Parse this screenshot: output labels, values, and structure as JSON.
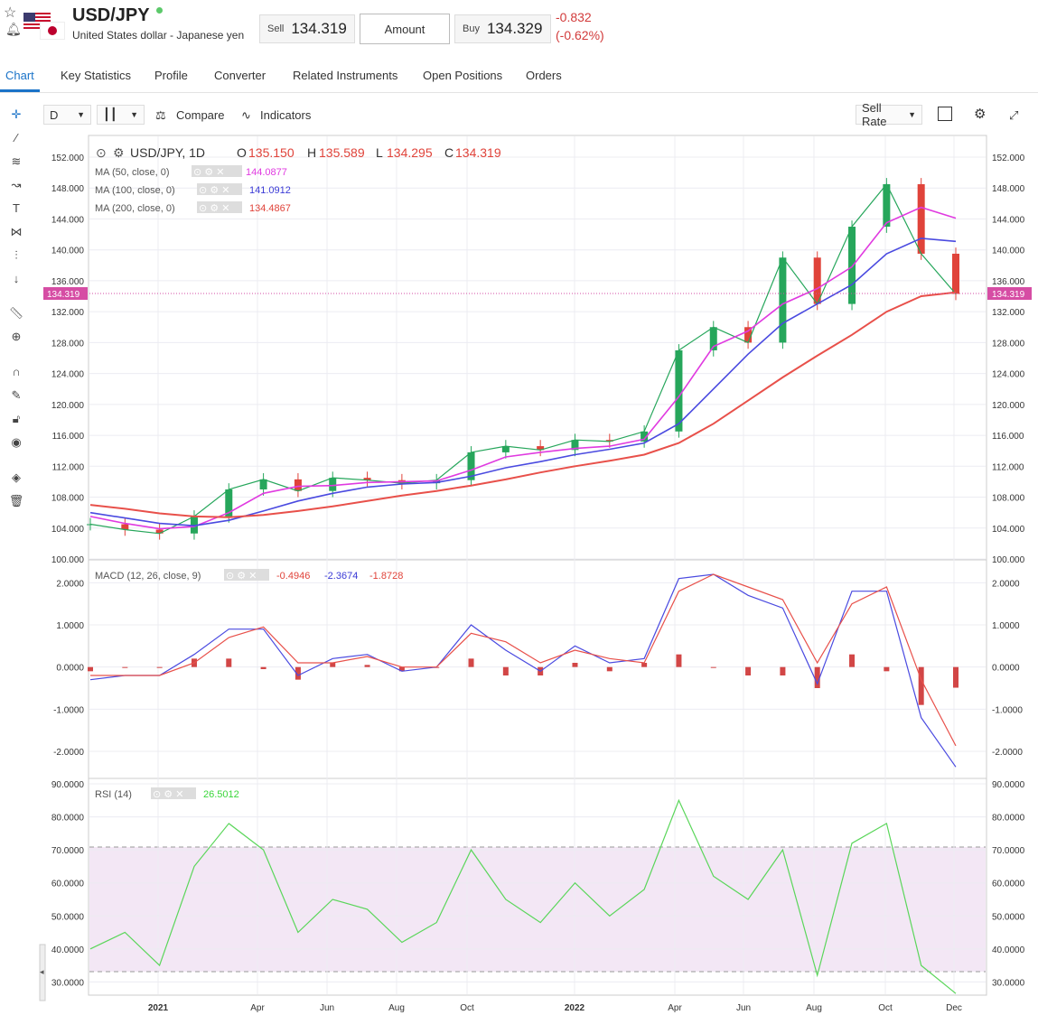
{
  "header": {
    "symbol": "USD/JPY",
    "description": "United States dollar - Japanese yen",
    "sell_label": "Sell",
    "sell_price": "134.319",
    "amount_label": "Amount",
    "buy_label": "Buy",
    "buy_price": "134.329",
    "change": "-0.832",
    "change_pct": "(-0.62%)",
    "colors": {
      "negative": "#d23b3b",
      "live": "#5cc96a"
    }
  },
  "tabs": [
    {
      "label": "Chart",
      "active": true
    },
    {
      "label": "Key Statistics"
    },
    {
      "label": "Profile"
    },
    {
      "label": "Converter"
    },
    {
      "label": "Related Instruments"
    },
    {
      "label": "Open Positions"
    },
    {
      "label": "Orders"
    }
  ],
  "toolbar": {
    "interval": "D",
    "compare": "Compare",
    "indicators": "Indicators",
    "rate_type": "Sell Rate"
  },
  "left_tools": [
    "crosshair-icon",
    "trend-line-icon",
    "fib-icon",
    "pattern-icon",
    "text-icon",
    "projection-icon",
    "measure-icon",
    "arrow-down-icon",
    "ruler-icon",
    "zoom-in-icon",
    "magnet-icon",
    "draw-lock-icon",
    "lock-icon",
    "eye-icon",
    "layers-icon",
    "trash-icon"
  ],
  "main_legend": {
    "name": "USD/JPY, 1D",
    "o_label": "O",
    "o": "135.150",
    "h_label": "H",
    "h": "135.589",
    "l_label": "L",
    "l": "134.295",
    "c_label": "C",
    "c": "134.319",
    "ma50_label": "MA (50, close, 0)",
    "ma50": "144.0877",
    "ma100_label": "MA (100, close, 0)",
    "ma100": "141.0912",
    "ma200_label": "MA (200, close, 0)",
    "ma200": "134.4867",
    "last_price_tag": "134.319"
  },
  "macd_legend": {
    "label": "MACD (12, 26, close, 9)",
    "hist": "-0.4946",
    "macd": "-2.3674",
    "signal": "-1.8728"
  },
  "rsi_legend": {
    "label": "RSI (14)",
    "value": "26.5012"
  },
  "chart_data": [
    {
      "type": "line",
      "title": "USD/JPY, 1D",
      "x": [
        "2020-11",
        "2020-12",
        "2021-01",
        "2021-02",
        "2021-03",
        "2021-04",
        "2021-05",
        "2021-06",
        "2021-07",
        "2021-08",
        "2021-09",
        "2021-10",
        "2021-11",
        "2021-12",
        "2022-01",
        "2022-02",
        "2022-03",
        "2022-04",
        "2022-05",
        "2022-06",
        "2022-07",
        "2022-08",
        "2022-09",
        "2022-10",
        "2022-11",
        "2022-12"
      ],
      "series": [
        {
          "name": "USD/JPY",
          "values": [
            104.5,
            103.8,
            103.3,
            105.5,
            109.0,
            110.3,
            108.8,
            110.5,
            110.2,
            109.8,
            110.2,
            113.8,
            114.6,
            114.1,
            115.4,
            115.2,
            116.5,
            127.0,
            130.0,
            128.0,
            139.0,
            133.0,
            143.0,
            148.5,
            139.5,
            134.3
          ]
        },
        {
          "name": "MA (50, close, 0)",
          "values": [
            105.5,
            104.6,
            103.9,
            104.2,
            106.0,
            108.5,
            109.4,
            109.5,
            109.9,
            110.0,
            110.1,
            111.5,
            113.2,
            113.8,
            114.3,
            114.6,
            115.5,
            121.0,
            127.5,
            129.5,
            133.0,
            135.0,
            137.8,
            143.5,
            145.5,
            144.1
          ]
        },
        {
          "name": "MA (100, close, 0)",
          "values": [
            106.0,
            105.3,
            104.6,
            104.3,
            105.0,
            106.2,
            107.5,
            108.5,
            109.3,
            109.7,
            109.9,
            110.7,
            111.8,
            112.6,
            113.5,
            114.2,
            115.0,
            117.5,
            122.0,
            126.5,
            130.5,
            133.0,
            135.5,
            139.5,
            141.5,
            141.1
          ]
        },
        {
          "name": "MA (200, close, 0)",
          "values": [
            107.0,
            106.5,
            105.9,
            105.5,
            105.4,
            105.7,
            106.2,
            106.8,
            107.5,
            108.2,
            108.8,
            109.5,
            110.3,
            111.2,
            112.0,
            112.7,
            113.5,
            115.0,
            117.5,
            120.5,
            123.5,
            126.3,
            129.0,
            132.0,
            134.0,
            134.5
          ]
        }
      ],
      "ylim": [
        100.0,
        152.0
      ],
      "yticks": [
        "152.000",
        "148.000",
        "144.000",
        "140.000",
        "136.000",
        "132.000",
        "128.000",
        "124.000",
        "120.000",
        "116.000",
        "112.000",
        "108.000",
        "104.000",
        "100.000"
      ],
      "xticks": [
        "2021",
        "Apr",
        "Jun",
        "Aug",
        "Oct",
        "2022",
        "Apr",
        "Jun",
        "Aug",
        "Oct",
        "Dec"
      ],
      "grid": true
    },
    {
      "type": "line",
      "title": "MACD (12, 26, close, 9)",
      "x": [
        "2020-11",
        "2020-12",
        "2021-01",
        "2021-02",
        "2021-03",
        "2021-04",
        "2021-05",
        "2021-06",
        "2021-07",
        "2021-08",
        "2021-09",
        "2021-10",
        "2021-11",
        "2021-12",
        "2022-01",
        "2022-02",
        "2022-03",
        "2022-04",
        "2022-05",
        "2022-06",
        "2022-07",
        "2022-08",
        "2022-09",
        "2022-10",
        "2022-11",
        "2022-12"
      ],
      "series": [
        {
          "name": "MACD",
          "values": [
            -0.3,
            -0.2,
            -0.2,
            0.3,
            0.9,
            0.9,
            -0.2,
            0.2,
            0.3,
            -0.1,
            0.0,
            1.0,
            0.4,
            -0.1,
            0.5,
            0.1,
            0.2,
            2.1,
            2.2,
            1.7,
            1.4,
            -0.4,
            1.8,
            1.8,
            -1.2,
            -2.37
          ]
        },
        {
          "name": "Signal",
          "values": [
            -0.2,
            -0.2,
            -0.2,
            0.1,
            0.7,
            0.95,
            0.1,
            0.1,
            0.25,
            0.0,
            0.0,
            0.8,
            0.6,
            0.1,
            0.4,
            0.2,
            0.1,
            1.8,
            2.2,
            1.9,
            1.6,
            0.1,
            1.5,
            1.9,
            -0.3,
            -1.87
          ]
        },
        {
          "name": "Histogram",
          "values": [
            -0.1,
            0.0,
            0.0,
            0.2,
            0.2,
            -0.05,
            -0.3,
            0.1,
            0.05,
            -0.1,
            0.0,
            0.2,
            -0.2,
            -0.2,
            0.1,
            -0.1,
            0.1,
            0.3,
            0.0,
            -0.2,
            -0.2,
            -0.5,
            0.3,
            -0.1,
            -0.9,
            -0.49
          ]
        }
      ],
      "yticks": [
        "2.0000",
        "1.0000",
        "0.0000",
        "-1.0000",
        "-2.0000"
      ],
      "ylim": [
        -2.6,
        2.5
      ]
    },
    {
      "type": "line",
      "title": "RSI (14)",
      "x": [
        "2020-11",
        "2020-12",
        "2021-01",
        "2021-02",
        "2021-03",
        "2021-04",
        "2021-05",
        "2021-06",
        "2021-07",
        "2021-08",
        "2021-09",
        "2021-10",
        "2021-11",
        "2021-12",
        "2022-01",
        "2022-02",
        "2022-03",
        "2022-04",
        "2022-05",
        "2022-06",
        "2022-07",
        "2022-08",
        "2022-09",
        "2022-10",
        "2022-11",
        "2022-12"
      ],
      "series": [
        {
          "name": "RSI",
          "values": [
            40,
            45,
            35,
            65,
            78,
            70,
            45,
            55,
            52,
            42,
            48,
            70,
            55,
            48,
            60,
            50,
            58,
            85,
            62,
            55,
            70,
            32,
            72,
            78,
            35,
            26.5
          ]
        }
      ],
      "ylim": [
        26.0,
        90.0
      ],
      "yticks": [
        "90.0000",
        "80.0000",
        "70.0000",
        "60.0000",
        "50.0000",
        "40.0000",
        "30.0000"
      ],
      "bands": [
        30,
        70
      ]
    }
  ]
}
